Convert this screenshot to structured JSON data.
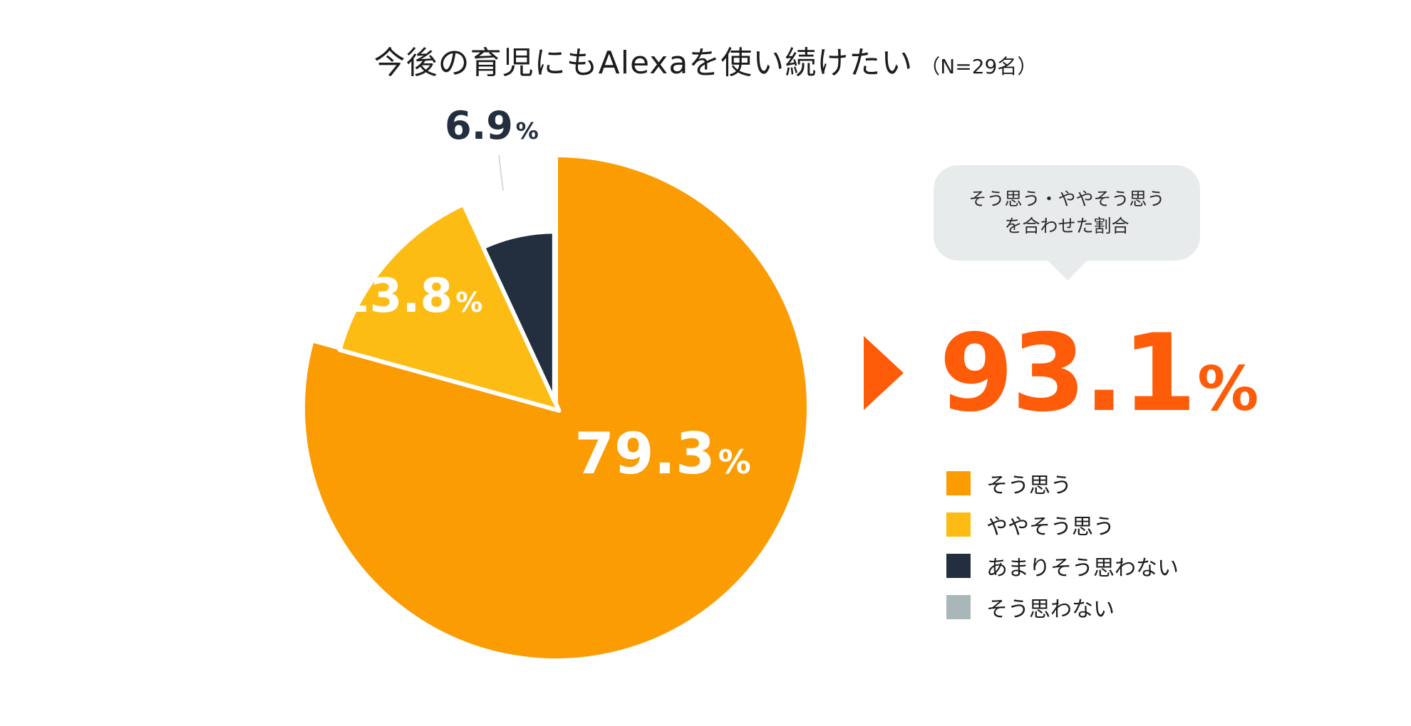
{
  "title": {
    "main": "今後の育児にもAlexaを使い続けたい",
    "note": "（N=29名）"
  },
  "colors": {
    "so_omou": "#fb9c02",
    "yaya": "#fdbc13",
    "amari": "#232f3e",
    "sou_omowanai": "#aab7b8",
    "accent": "#ff5c0a",
    "bubble": "#e8ebec"
  },
  "chart_data": {
    "type": "pie",
    "title": "今後の育児にもAlexaを使い続けたい",
    "subtitle": "（N=29名）",
    "unit": "%",
    "slices": [
      {
        "label": "そう思う",
        "value": 79.3,
        "display": "79.3",
        "color": "#fb9c02",
        "exploded": false,
        "label_color": "#ffffff"
      },
      {
        "label": "ややそう思う",
        "value": 13.8,
        "display": "13.8",
        "color": "#fdbc13",
        "exploded": true,
        "label_color": "#ffffff"
      },
      {
        "label": "あまりそう思わない",
        "value": 6.9,
        "display": "6.9",
        "color": "#232f3e",
        "exploded": true,
        "label_color": "#232f3e"
      },
      {
        "label": "そう思わない",
        "value": 0,
        "display": "",
        "color": "#aab7b8",
        "exploded": false,
        "label_color": "#232f3e"
      }
    ],
    "start_angle": "12 o'clock",
    "direction": "clockwise",
    "legend_position": "right"
  },
  "callout": {
    "bubble_line1": "そう思う・ややそう思う",
    "bubble_line2": "を合わせた割合",
    "total_value": "93.1",
    "total_unit": "%"
  },
  "legend": [
    {
      "label": "そう思う",
      "color": "#fb9c02"
    },
    {
      "label": "ややそう思う",
      "color": "#fdbc13"
    },
    {
      "label": "あまりそう思わない",
      "color": "#232f3e"
    },
    {
      "label": "そう思わない",
      "color": "#aab7b8"
    }
  ]
}
